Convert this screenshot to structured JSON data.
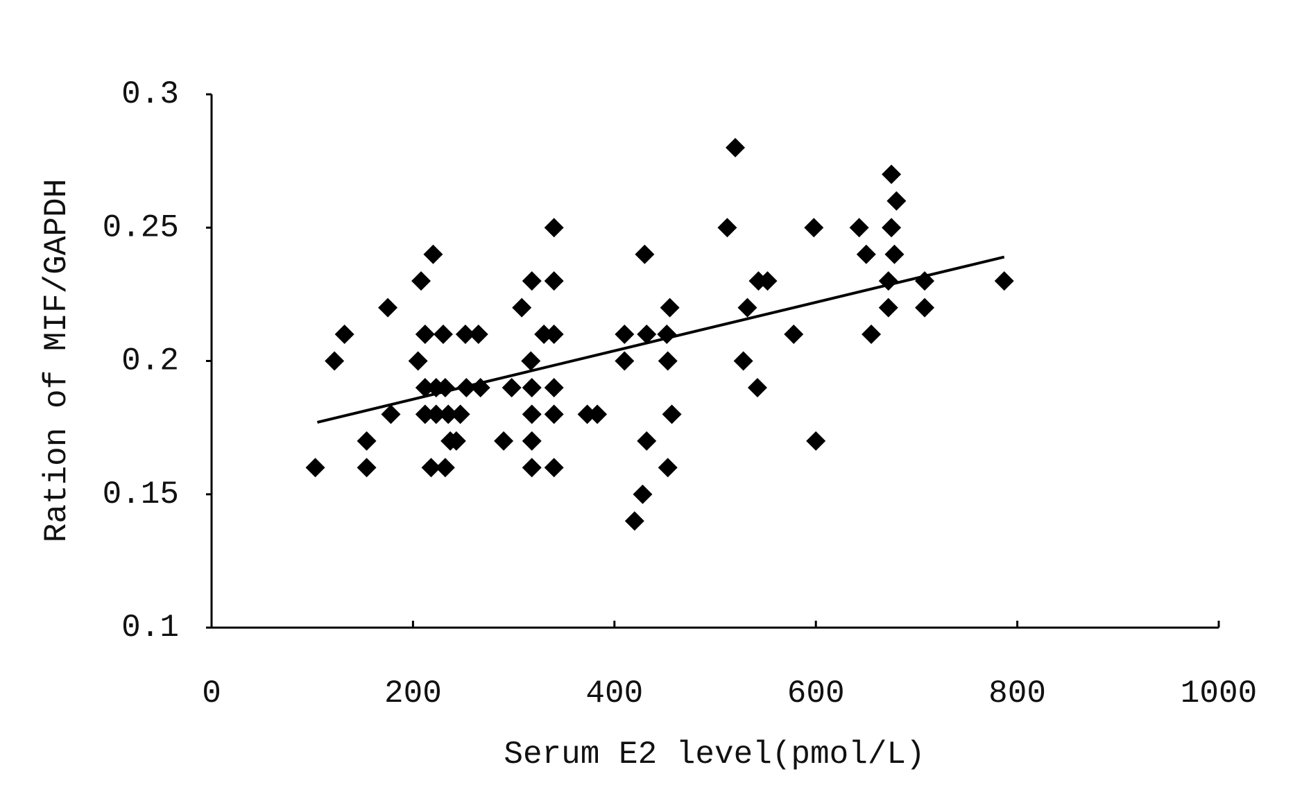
{
  "chart_data": {
    "type": "scatter",
    "x_label": "Serum E2 level(pmol/L)",
    "y_label": "Ration of MIF/GAPDH",
    "color": "#000000",
    "xlim": [
      0,
      1000
    ],
    "xticks": [
      0,
      200,
      400,
      600,
      800,
      1000
    ],
    "ylim": [
      0.1,
      0.3
    ],
    "yticks": [
      0.1,
      0.15,
      0.2,
      0.25,
      0.3
    ],
    "grid": false,
    "x": [
      103,
      122,
      132,
      154,
      154,
      175,
      178,
      205,
      208,
      212,
      212,
      212,
      220,
      218,
      223,
      223,
      230,
      232,
      232,
      235,
      237,
      243,
      247,
      252,
      253,
      265,
      267,
      290,
      298,
      308,
      317,
      318,
      318,
      318,
      318,
      318,
      330,
      340,
      340,
      340,
      340,
      340,
      340,
      373,
      383,
      410,
      410,
      420,
      428,
      430,
      432,
      432,
      452,
      453,
      453,
      455,
      457,
      512,
      520,
      528,
      532,
      542,
      543,
      552,
      578,
      598,
      600,
      643,
      650,
      655,
      672,
      672,
      675,
      675,
      678,
      680,
      708,
      708,
      787
    ],
    "values": [
      0.16,
      0.2,
      0.21,
      0.17,
      0.16,
      0.22,
      0.18,
      0.2,
      0.23,
      0.21,
      0.19,
      0.18,
      0.24,
      0.16,
      0.19,
      0.18,
      0.21,
      0.19,
      0.16,
      0.18,
      0.17,
      0.17,
      0.18,
      0.21,
      0.19,
      0.21,
      0.19,
      0.17,
      0.19,
      0.22,
      0.2,
      0.23,
      0.19,
      0.18,
      0.17,
      0.16,
      0.21,
      0.25,
      0.23,
      0.21,
      0.19,
      0.18,
      0.16,
      0.18,
      0.18,
      0.21,
      0.2,
      0.14,
      0.15,
      0.24,
      0.17,
      0.21,
      0.21,
      0.2,
      0.16,
      0.22,
      0.18,
      0.25,
      0.28,
      0.2,
      0.22,
      0.19,
      0.23,
      0.23,
      0.21,
      0.25,
      0.17,
      0.25,
      0.24,
      0.21,
      0.22,
      0.23,
      0.27,
      0.25,
      0.24,
      0.26,
      0.23,
      0.22,
      0.23
    ],
    "trendline": {
      "x": [
        105,
        787
      ],
      "values": [
        0.177,
        0.239
      ]
    }
  }
}
